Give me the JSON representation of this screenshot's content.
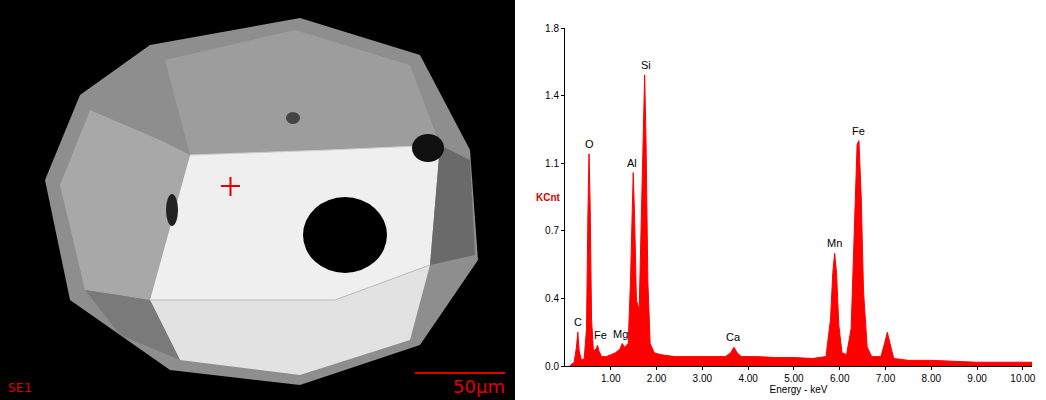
{
  "chart_data": {
    "type": "area",
    "color": "#ff0000",
    "x_label": "Energy - keV",
    "y_label": "KCnt",
    "x": [
      0.1,
      0.2,
      0.25,
      0.28,
      0.31,
      0.36,
      0.42,
      0.47,
      0.5,
      0.525,
      0.55,
      0.58,
      0.62,
      0.68,
      0.71,
      0.74,
      0.8,
      0.9,
      1.0,
      1.1,
      1.2,
      1.25,
      1.3,
      1.38,
      1.43,
      1.47,
      1.49,
      1.52,
      1.56,
      1.62,
      1.68,
      1.72,
      1.74,
      1.77,
      1.81,
      1.86,
      1.95,
      2.1,
      2.4,
      2.8,
      3.2,
      3.5,
      3.62,
      3.69,
      3.76,
      3.85,
      4.2,
      4.6,
      5.0,
      5.4,
      5.7,
      5.8,
      5.85,
      5.89,
      5.93,
      5.98,
      6.05,
      6.15,
      6.25,
      6.32,
      6.38,
      6.42,
      6.47,
      6.52,
      6.6,
      6.7,
      6.9,
      6.98,
      7.04,
      7.1,
      7.18,
      7.5,
      8.0,
      8.5,
      9.0,
      9.5,
      10.0,
      10.2
    ],
    "values": [
      0.0,
      0.02,
      0.1,
      0.18,
      0.08,
      0.03,
      0.04,
      0.2,
      0.8,
      1.13,
      0.85,
      0.25,
      0.08,
      0.09,
      0.11,
      0.08,
      0.05,
      0.05,
      0.06,
      0.07,
      0.09,
      0.12,
      0.1,
      0.12,
      0.45,
      0.95,
      1.03,
      0.8,
      0.35,
      0.3,
      0.95,
      1.5,
      1.55,
      1.2,
      0.45,
      0.12,
      0.07,
      0.06,
      0.05,
      0.05,
      0.05,
      0.05,
      0.07,
      0.1,
      0.07,
      0.05,
      0.05,
      0.045,
      0.045,
      0.04,
      0.05,
      0.25,
      0.5,
      0.6,
      0.5,
      0.22,
      0.07,
      0.06,
      0.2,
      0.8,
      1.18,
      1.2,
      0.9,
      0.4,
      0.1,
      0.05,
      0.05,
      0.12,
      0.18,
      0.12,
      0.04,
      0.03,
      0.03,
      0.025,
      0.02,
      0.02,
      0.02,
      0.02
    ],
    "xlim": [
      0,
      10.2
    ],
    "xticks": [
      {
        "value": 1,
        "label": "1.00"
      },
      {
        "value": 2,
        "label": "2.00"
      },
      {
        "value": 3,
        "label": "3.00"
      },
      {
        "value": 4,
        "label": "4.00"
      },
      {
        "value": 5,
        "label": "5.00"
      },
      {
        "value": 6,
        "label": "6.00"
      },
      {
        "value": 7,
        "label": "7.00"
      },
      {
        "value": 8,
        "label": "8.00"
      },
      {
        "value": 9,
        "label": "9.00"
      },
      {
        "value": 10,
        "label": "10.00"
      }
    ],
    "ylim": [
      0,
      1.8
    ],
    "yticks": [
      {
        "value": 0,
        "label": "0.0"
      },
      {
        "value": 0.36,
        "label": "0.4"
      },
      {
        "value": 0.72,
        "label": "0.7"
      },
      {
        "value": 1.08,
        "label": "1.1"
      },
      {
        "value": 1.44,
        "label": "1.4"
      },
      {
        "value": 1.8,
        "label": "1.8"
      }
    ],
    "grid": false,
    "annotations": [
      {
        "text": "C",
        "x": 0.28,
        "y": 0.19
      },
      {
        "text": "O",
        "x": 0.53,
        "y": 1.14
      },
      {
        "text": "Fe",
        "x": 0.78,
        "y": 0.12
      },
      {
        "text": "Mg",
        "x": 1.22,
        "y": 0.13
      },
      {
        "text": "Al",
        "x": 1.47,
        "y": 1.04
      },
      {
        "text": "Si",
        "x": 1.76,
        "y": 1.56
      },
      {
        "text": "Ca",
        "x": 3.69,
        "y": 0.11
      },
      {
        "text": "Mn",
        "x": 5.89,
        "y": 0.61
      },
      {
        "text": "Fe",
        "x": 6.42,
        "y": 1.21
      }
    ]
  },
  "image": {
    "detector": "SE1",
    "scale_bar": "50µm"
  }
}
